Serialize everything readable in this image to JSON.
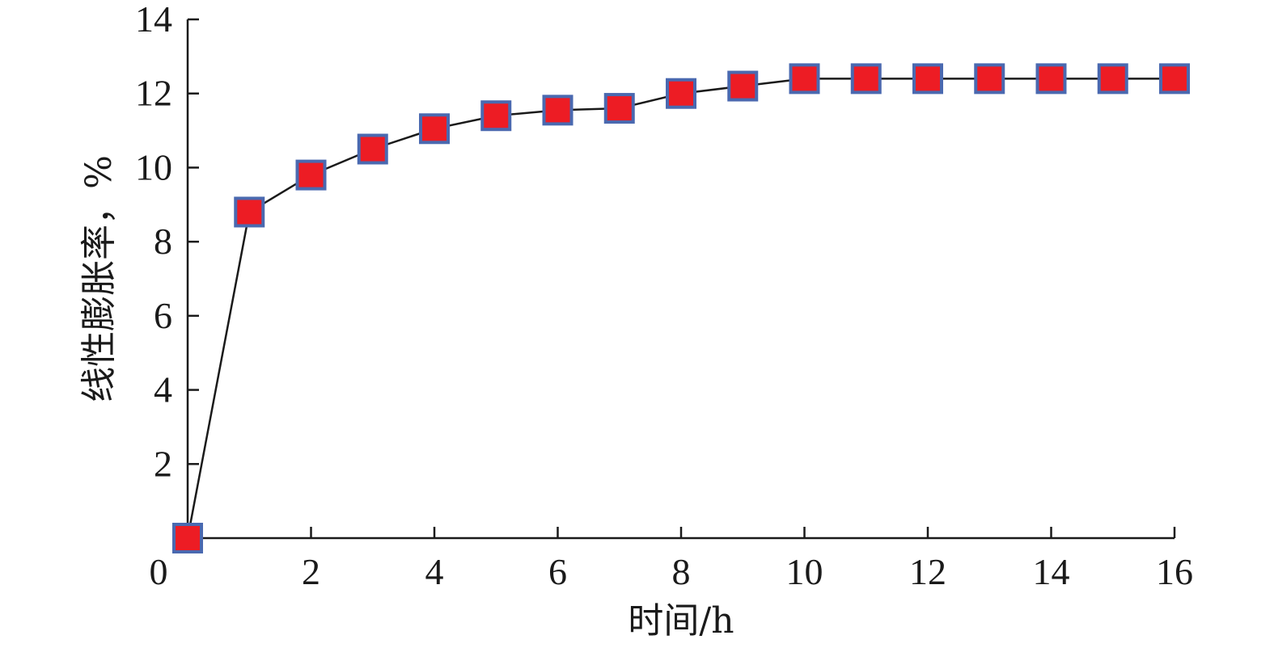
{
  "chart_data": {
    "type": "line",
    "xlabel": "时间/h",
    "ylabel": "线性膨胀率，%",
    "xlim": [
      0,
      16
    ],
    "ylim": [
      0,
      14
    ],
    "x_ticks": [
      0,
      2,
      4,
      6,
      8,
      10,
      12,
      14,
      16
    ],
    "x_tick_labels": [
      "0",
      "2",
      "4",
      "6",
      "8",
      "10",
      "12",
      "14",
      "16"
    ],
    "y_ticks": [
      2,
      4,
      6,
      8,
      10,
      12,
      14
    ],
    "y_tick_labels": [
      "2",
      "4",
      "6",
      "8",
      "10",
      "12",
      "14"
    ],
    "grid": false,
    "legend": "none",
    "series": [
      {
        "marker": "square",
        "marker_fill": "#ed1c24",
        "marker_edge": "#4a69b0",
        "line_color": "#1a1a1a",
        "points": [
          {
            "x": 0,
            "y": 0
          },
          {
            "x": 1,
            "y": 8.8
          },
          {
            "x": 2,
            "y": 9.8
          },
          {
            "x": 3,
            "y": 10.5
          },
          {
            "x": 4,
            "y": 11.05
          },
          {
            "x": 5,
            "y": 11.4
          },
          {
            "x": 6,
            "y": 11.55
          },
          {
            "x": 7,
            "y": 11.6
          },
          {
            "x": 8,
            "y": 12.0
          },
          {
            "x": 9,
            "y": 12.2
          },
          {
            "x": 10,
            "y": 12.4
          },
          {
            "x": 11,
            "y": 12.4
          },
          {
            "x": 12,
            "y": 12.4
          },
          {
            "x": 13,
            "y": 12.4
          },
          {
            "x": 14,
            "y": 12.4
          },
          {
            "x": 15,
            "y": 12.4
          },
          {
            "x": 16,
            "y": 12.4
          }
        ]
      }
    ]
  }
}
